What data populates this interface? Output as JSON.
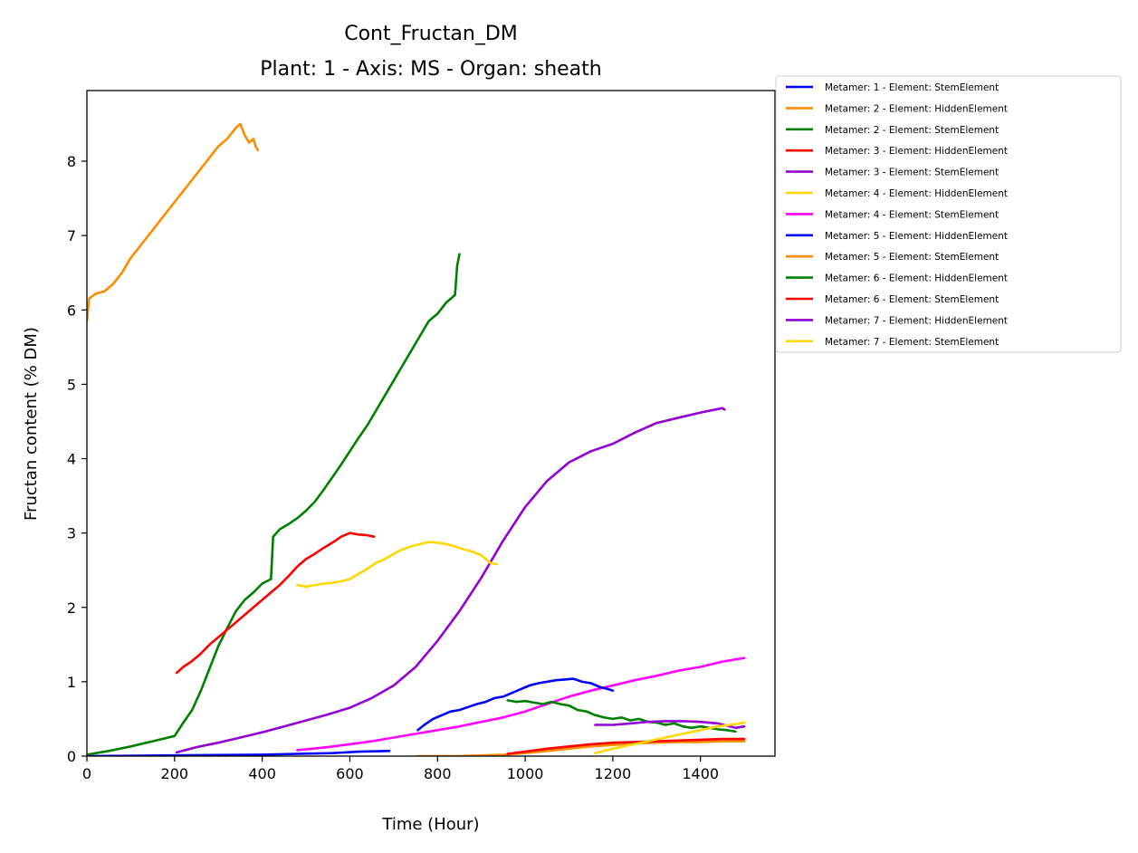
{
  "chart_data": {
    "type": "line",
    "title": "Cont_Fructan_DM",
    "subtitle": "Plant: 1 - Axis: MS - Organ: sheath",
    "xlabel": "Time (Hour)",
    "ylabel": "Fructan content (% DM)",
    "xlim": [
      0,
      1570
    ],
    "ylim": [
      0,
      8.95
    ],
    "xticks": [
      0,
      200,
      400,
      600,
      800,
      1000,
      1200,
      1400
    ],
    "yticks": [
      0,
      1,
      2,
      3,
      4,
      5,
      6,
      7,
      8
    ],
    "grid": false,
    "legend_position": "outside-top-right",
    "series": [
      {
        "name": "Metamer: 1 - Element: StemElement",
        "color": "#0000ff",
        "x": [
          0,
          200,
          400,
          480,
          560,
          620,
          690
        ],
        "y": [
          0.0,
          0.01,
          0.02,
          0.03,
          0.04,
          0.06,
          0.07
        ]
      },
      {
        "name": "Metamer: 2 - Element: HiddenElement",
        "color": "#ff8c00",
        "x": [
          0,
          5,
          20,
          40,
          60,
          80,
          100,
          120,
          140,
          160,
          180,
          200,
          220,
          240,
          260,
          280,
          300,
          320,
          340,
          350,
          360,
          370,
          380,
          385,
          390
        ],
        "y": [
          5.85,
          6.15,
          6.22,
          6.25,
          6.35,
          6.5,
          6.7,
          6.85,
          7.0,
          7.15,
          7.3,
          7.45,
          7.6,
          7.75,
          7.9,
          8.05,
          8.2,
          8.3,
          8.45,
          8.5,
          8.35,
          8.25,
          8.3,
          8.2,
          8.15
        ]
      },
      {
        "name": "Metamer: 2 - Element: StemElement",
        "color": "#008000",
        "x": [
          0,
          50,
          100,
          150,
          200,
          220,
          240,
          260,
          280,
          300,
          320,
          340,
          360,
          380,
          400,
          420,
          425,
          440,
          460,
          480,
          500,
          520,
          540,
          560,
          580,
          600,
          620,
          640,
          660,
          680,
          700,
          720,
          740,
          760,
          780,
          800,
          820,
          840,
          845,
          850
        ],
        "y": [
          0.02,
          0.07,
          0.13,
          0.2,
          0.27,
          0.45,
          0.62,
          0.88,
          1.18,
          1.48,
          1.72,
          1.95,
          2.1,
          2.2,
          2.32,
          2.38,
          2.95,
          3.05,
          3.12,
          3.2,
          3.3,
          3.42,
          3.58,
          3.75,
          3.92,
          4.1,
          4.28,
          4.45,
          4.65,
          4.85,
          5.05,
          5.25,
          5.45,
          5.65,
          5.85,
          5.95,
          6.1,
          6.2,
          6.6,
          6.75
        ]
      },
      {
        "name": "Metamer: 3 - Element: HiddenElement",
        "color": "#ff0000",
        "x": [
          205,
          220,
          240,
          260,
          280,
          300,
          320,
          340,
          360,
          380,
          400,
          420,
          440,
          460,
          480,
          500,
          520,
          540,
          560,
          580,
          600,
          620,
          640,
          655
        ],
        "y": [
          1.12,
          1.2,
          1.28,
          1.38,
          1.5,
          1.6,
          1.7,
          1.8,
          1.9,
          2.0,
          2.1,
          2.2,
          2.3,
          2.42,
          2.55,
          2.65,
          2.72,
          2.8,
          2.87,
          2.95,
          3.0,
          2.98,
          2.97,
          2.95
        ]
      },
      {
        "name": "Metamer: 3 - Element: StemElement",
        "color": "#9400d3",
        "x": [
          205,
          250,
          300,
          350,
          400,
          450,
          500,
          550,
          600,
          650,
          700,
          750,
          800,
          850,
          900,
          950,
          1000,
          1050,
          1100,
          1150,
          1200,
          1250,
          1300,
          1350,
          1400,
          1450,
          1455
        ],
        "y": [
          0.05,
          0.12,
          0.18,
          0.25,
          0.32,
          0.4,
          0.48,
          0.56,
          0.65,
          0.78,
          0.95,
          1.2,
          1.55,
          1.95,
          2.4,
          2.9,
          3.35,
          3.7,
          3.95,
          4.1,
          4.2,
          4.35,
          4.48,
          4.55,
          4.62,
          4.68,
          4.66
        ]
      },
      {
        "name": "Metamer: 4 - Element: HiddenElement",
        "color": "#ffd700",
        "x": [
          480,
          500,
          520,
          540,
          560,
          580,
          600,
          620,
          640,
          660,
          680,
          700,
          720,
          740,
          760,
          780,
          800,
          820,
          840,
          860,
          880,
          900,
          920,
          935
        ],
        "y": [
          2.3,
          2.28,
          2.3,
          2.32,
          2.33,
          2.35,
          2.38,
          2.45,
          2.52,
          2.6,
          2.65,
          2.72,
          2.78,
          2.82,
          2.85,
          2.88,
          2.87,
          2.85,
          2.82,
          2.78,
          2.75,
          2.7,
          2.6,
          2.58
        ]
      },
      {
        "name": "Metamer: 4 - Element: StemElement",
        "color": "#ff00ff",
        "x": [
          480,
          550,
          600,
          650,
          700,
          750,
          800,
          850,
          900,
          950,
          1000,
          1050,
          1100,
          1150,
          1200,
          1250,
          1300,
          1350,
          1400,
          1450,
          1500
        ],
        "y": [
          0.08,
          0.12,
          0.16,
          0.2,
          0.25,
          0.3,
          0.35,
          0.4,
          0.46,
          0.52,
          0.6,
          0.7,
          0.8,
          0.88,
          0.95,
          1.02,
          1.08,
          1.15,
          1.2,
          1.27,
          1.32
        ]
      },
      {
        "name": "Metamer: 5 - Element: HiddenElement",
        "color": "#0000ff",
        "x": [
          755,
          770,
          790,
          810,
          830,
          850,
          870,
          890,
          910,
          930,
          950,
          970,
          990,
          1010,
          1030,
          1050,
          1070,
          1090,
          1110,
          1130,
          1150,
          1170,
          1190,
          1200
        ],
        "y": [
          0.35,
          0.42,
          0.5,
          0.55,
          0.6,
          0.62,
          0.66,
          0.7,
          0.73,
          0.78,
          0.8,
          0.85,
          0.9,
          0.95,
          0.98,
          1.0,
          1.02,
          1.03,
          1.04,
          1.0,
          0.98,
          0.93,
          0.9,
          0.88
        ]
      },
      {
        "name": "Metamer: 5 - Element: StemElement",
        "color": "#ff8c00",
        "x": [
          755,
          800,
          850,
          900,
          950,
          1000,
          1050,
          1100,
          1150,
          1200,
          1250,
          1300,
          1350,
          1400,
          1450,
          1500
        ],
        "y": [
          0.0,
          0.0,
          0.0,
          0.01,
          0.02,
          0.04,
          0.07,
          0.1,
          0.13,
          0.15,
          0.17,
          0.18,
          0.19,
          0.19,
          0.2,
          0.2
        ]
      },
      {
        "name": "Metamer: 6 - Element: HiddenElement",
        "color": "#008000",
        "x": [
          960,
          980,
          1000,
          1020,
          1040,
          1060,
          1080,
          1100,
          1120,
          1140,
          1160,
          1180,
          1200,
          1220,
          1240,
          1260,
          1280,
          1300,
          1320,
          1340,
          1360,
          1380,
          1400,
          1420,
          1440,
          1460,
          1480
        ],
        "y": [
          0.75,
          0.73,
          0.74,
          0.72,
          0.7,
          0.73,
          0.7,
          0.68,
          0.62,
          0.6,
          0.55,
          0.52,
          0.5,
          0.52,
          0.48,
          0.5,
          0.46,
          0.45,
          0.42,
          0.44,
          0.4,
          0.38,
          0.4,
          0.38,
          0.36,
          0.35,
          0.33
        ]
      },
      {
        "name": "Metamer: 6 - Element: StemElement",
        "color": "#ff0000",
        "x": [
          960,
          1000,
          1050,
          1100,
          1150,
          1200,
          1250,
          1300,
          1350,
          1400,
          1450,
          1500
        ],
        "y": [
          0.03,
          0.06,
          0.1,
          0.13,
          0.16,
          0.18,
          0.19,
          0.2,
          0.21,
          0.22,
          0.23,
          0.23
        ]
      },
      {
        "name": "Metamer: 7 - Element: HiddenElement",
        "color": "#9400d3",
        "x": [
          1160,
          1200,
          1240,
          1280,
          1320,
          1360,
          1400,
          1440,
          1480,
          1500
        ],
        "y": [
          0.42,
          0.42,
          0.44,
          0.46,
          0.47,
          0.47,
          0.46,
          0.44,
          0.38,
          0.4
        ]
      },
      {
        "name": "Metamer: 7 - Element: StemElement",
        "color": "#ffd700",
        "x": [
          1160,
          1200,
          1240,
          1280,
          1320,
          1360,
          1400,
          1440,
          1480,
          1500
        ],
        "y": [
          0.04,
          0.1,
          0.15,
          0.2,
          0.25,
          0.3,
          0.35,
          0.4,
          0.43,
          0.45
        ]
      }
    ]
  }
}
